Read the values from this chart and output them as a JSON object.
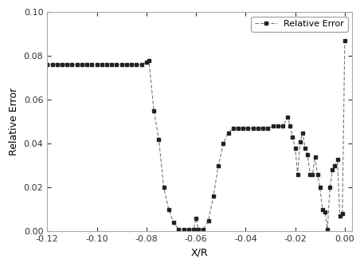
{
  "title": "",
  "xlabel": "X/R",
  "ylabel": "Relative Error",
  "xlim": [
    -0.12,
    0.003
  ],
  "ylim": [
    0.0,
    0.1
  ],
  "xticks": [
    -0.12,
    -0.1,
    -0.08,
    -0.06,
    -0.04,
    -0.02,
    0.0
  ],
  "yticks": [
    0.0,
    0.02,
    0.04,
    0.06,
    0.08,
    0.1
  ],
  "legend_label": "Relative Error",
  "line_color": "#777777",
  "marker": "s",
  "markersize": 3.5,
  "x": [
    -0.12,
    -0.118,
    -0.116,
    -0.114,
    -0.112,
    -0.11,
    -0.108,
    -0.106,
    -0.104,
    -0.102,
    -0.1,
    -0.098,
    -0.096,
    -0.094,
    -0.092,
    -0.09,
    -0.088,
    -0.086,
    -0.084,
    -0.082,
    -0.08,
    -0.079,
    -0.077,
    -0.075,
    -0.073,
    -0.071,
    -0.069,
    -0.067,
    -0.065,
    -0.063,
    -0.061,
    -0.06,
    -0.059,
    -0.057,
    -0.055,
    -0.053,
    -0.051,
    -0.049,
    -0.047,
    -0.045,
    -0.043,
    -0.041,
    -0.039,
    -0.037,
    -0.035,
    -0.033,
    -0.031,
    -0.029,
    -0.027,
    -0.025,
    -0.023,
    -0.022,
    -0.021,
    -0.02,
    -0.019,
    -0.018,
    -0.017,
    -0.016,
    -0.015,
    -0.014,
    -0.013,
    -0.012,
    -0.011,
    -0.01,
    -0.009,
    -0.008,
    -0.007,
    -0.006,
    -0.005,
    -0.004,
    -0.003,
    -0.002,
    -0.001,
    0.0
  ],
  "y": [
    0.076,
    0.076,
    0.076,
    0.076,
    0.076,
    0.076,
    0.076,
    0.076,
    0.076,
    0.076,
    0.076,
    0.076,
    0.076,
    0.076,
    0.076,
    0.076,
    0.076,
    0.076,
    0.076,
    0.076,
    0.077,
    0.078,
    0.055,
    0.042,
    0.02,
    0.01,
    0.004,
    0.001,
    0.001,
    0.001,
    0.001,
    0.006,
    0.001,
    0.001,
    0.005,
    0.016,
    0.03,
    0.04,
    0.045,
    0.047,
    0.047,
    0.047,
    0.047,
    0.047,
    0.047,
    0.047,
    0.047,
    0.048,
    0.048,
    0.048,
    0.052,
    0.048,
    0.043,
    0.038,
    0.026,
    0.041,
    0.045,
    0.038,
    0.035,
    0.026,
    0.026,
    0.034,
    0.026,
    0.02,
    0.01,
    0.009,
    0.001,
    0.02,
    0.028,
    0.03,
    0.033,
    0.007,
    0.008,
    0.087
  ]
}
